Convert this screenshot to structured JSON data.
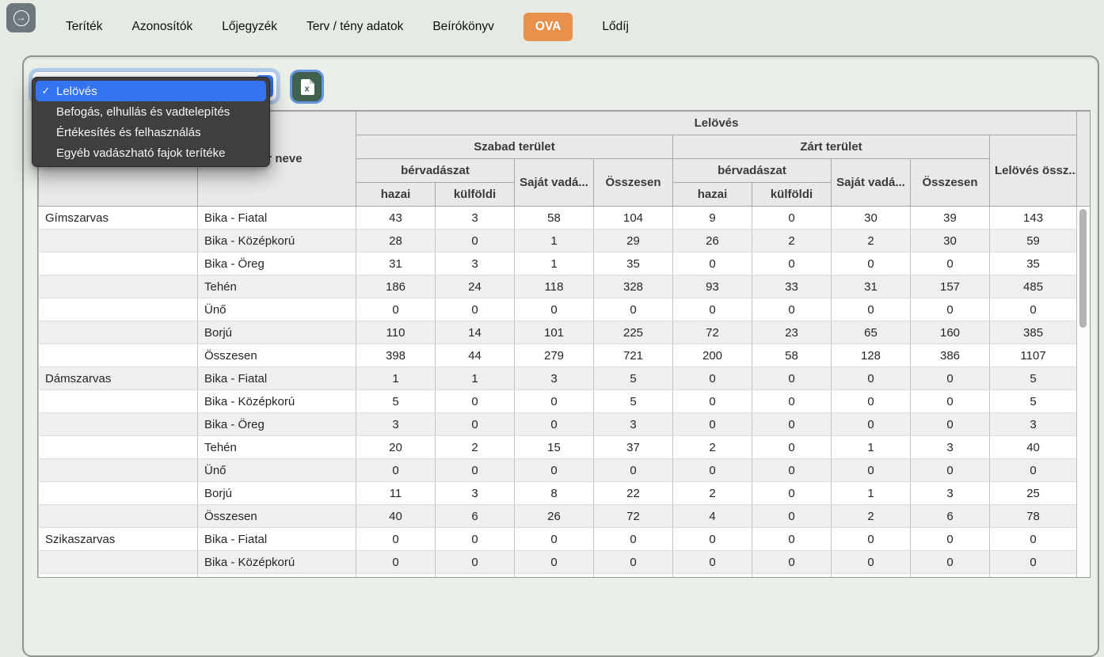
{
  "colors": {
    "accent_orange": "#e8914d",
    "selection_blue": "#3574f0",
    "excel_green": "#41614f",
    "scroll_thumb": "#b4b4b4"
  },
  "nav": {
    "back_button_icon": "arrow-right-in-circle",
    "tabs": [
      {
        "label": "Teríték",
        "active": false
      },
      {
        "label": "Azonosítók",
        "active": false
      },
      {
        "label": "Lőjegyzék",
        "active": false
      },
      {
        "label": "Terv / tény adatok",
        "active": false
      },
      {
        "label": "Beírókönyv",
        "active": false
      },
      {
        "label": "OVA",
        "active": true
      },
      {
        "label": "Lődíj",
        "active": false
      }
    ]
  },
  "toolbar": {
    "report_select": {
      "value": "Lelövés"
    },
    "excel_button": {
      "icon": "excel-file-icon"
    }
  },
  "dropdown": {
    "items": [
      {
        "label": "Lelövés",
        "selected": true
      },
      {
        "label": "Befogás, elhullás és vadtelepítés",
        "selected": false
      },
      {
        "label": "Értékesítés és felhasználás",
        "selected": false
      },
      {
        "label": "Egyéb vadászható fajok terítéke",
        "selected": false
      }
    ],
    "checkmark": "✓"
  },
  "table": {
    "header": {
      "species": "",
      "age": "Kor neve",
      "leloves": "Lelövés",
      "szabad": "Szabad terület",
      "zart": "Zárt terület",
      "total": "Lelövés össz...",
      "bervadaszat1": "bérvadászat",
      "sajat1": "Saját vadá...",
      "osszesen1": "Összesen",
      "bervadaszat2": "bérvadászat",
      "sajat2": "Saját vadá...",
      "osszesen2": "Összesen",
      "hazai1": "hazai",
      "kulfoldi1": "külföldi",
      "hazai2": "hazai",
      "kulfoldi2": "külföldi"
    },
    "rows": [
      {
        "species": "Gímszarvas",
        "age": "Bika - Fiatal",
        "values": [
          43,
          3,
          58,
          104,
          9,
          0,
          30,
          39,
          143
        ]
      },
      {
        "species": "",
        "age": "Bika - Középkorú",
        "values": [
          28,
          0,
          1,
          29,
          26,
          2,
          2,
          30,
          59
        ]
      },
      {
        "species": "",
        "age": "Bika - Öreg",
        "values": [
          31,
          3,
          1,
          35,
          0,
          0,
          0,
          0,
          35
        ]
      },
      {
        "species": "",
        "age": "Tehén",
        "values": [
          186,
          24,
          118,
          328,
          93,
          33,
          31,
          157,
          485
        ]
      },
      {
        "species": "",
        "age": "Ünő",
        "values": [
          0,
          0,
          0,
          0,
          0,
          0,
          0,
          0,
          0
        ]
      },
      {
        "species": "",
        "age": "Borjú",
        "values": [
          110,
          14,
          101,
          225,
          72,
          23,
          65,
          160,
          385
        ]
      },
      {
        "species": "",
        "age": "Összesen",
        "values": [
          398,
          44,
          279,
          721,
          200,
          58,
          128,
          386,
          1107
        ]
      },
      {
        "species": "Dámszarvas",
        "age": "Bika - Fiatal",
        "values": [
          1,
          1,
          3,
          5,
          0,
          0,
          0,
          0,
          5
        ]
      },
      {
        "species": "",
        "age": "Bika - Középkorú",
        "values": [
          5,
          0,
          0,
          5,
          0,
          0,
          0,
          0,
          5
        ]
      },
      {
        "species": "",
        "age": "Bika - Öreg",
        "values": [
          3,
          0,
          0,
          3,
          0,
          0,
          0,
          0,
          3
        ]
      },
      {
        "species": "",
        "age": "Tehén",
        "values": [
          20,
          2,
          15,
          37,
          2,
          0,
          1,
          3,
          40
        ]
      },
      {
        "species": "",
        "age": "Ünő",
        "values": [
          0,
          0,
          0,
          0,
          0,
          0,
          0,
          0,
          0
        ]
      },
      {
        "species": "",
        "age": "Borjú",
        "values": [
          11,
          3,
          8,
          22,
          2,
          0,
          1,
          3,
          25
        ]
      },
      {
        "species": "",
        "age": "Összesen",
        "values": [
          40,
          6,
          26,
          72,
          4,
          0,
          2,
          6,
          78
        ]
      },
      {
        "species": "Szikaszarvas",
        "age": "Bika - Fiatal",
        "values": [
          0,
          0,
          0,
          0,
          0,
          0,
          0,
          0,
          0
        ]
      },
      {
        "species": "",
        "age": "Bika - Középkorú",
        "values": [
          0,
          0,
          0,
          0,
          0,
          0,
          0,
          0,
          0
        ]
      },
      {
        "species": "",
        "age": "",
        "values": [
          "",
          "",
          "",
          "",
          "",
          "",
          "",
          "",
          ""
        ]
      }
    ]
  }
}
